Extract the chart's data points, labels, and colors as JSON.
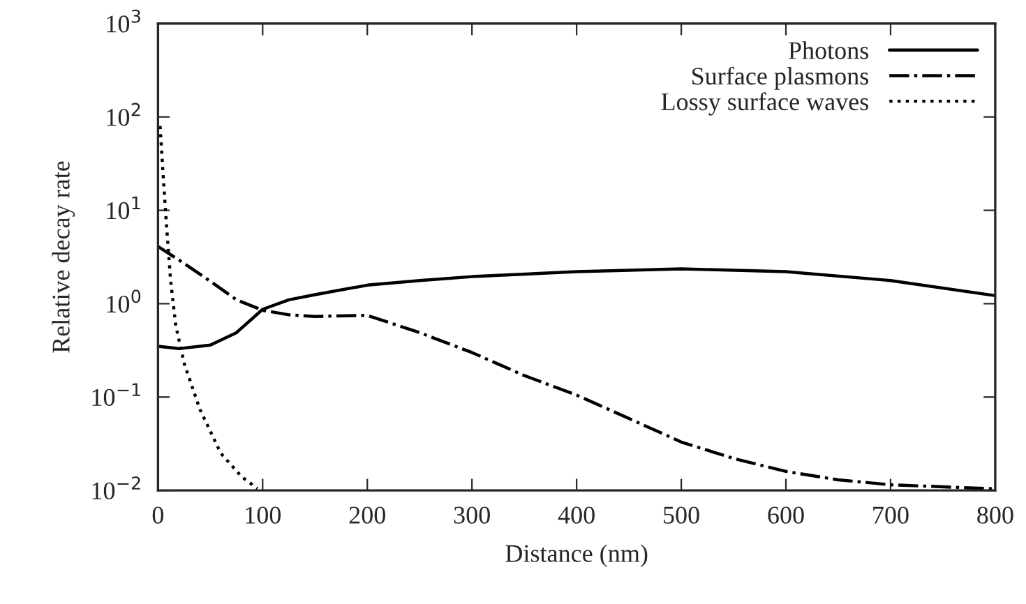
{
  "chart_data": {
    "type": "line",
    "xlabel": "Distance (nm)",
    "ylabel": "Relative decay rate",
    "log": "y",
    "xlim": [
      0,
      800
    ],
    "xticks": [
      0,
      100,
      200,
      300,
      400,
      500,
      600,
      700,
      800
    ],
    "ylim": [
      0.01,
      1000
    ],
    "yticks": [
      {
        "value": 0.01,
        "label": "10$^{−2}$"
      },
      {
        "value": 0.1,
        "label": "10$^{−1}$"
      },
      {
        "value": 1,
        "label": "10$^{0}$"
      },
      {
        "value": 10,
        "label": "10$^{1}$"
      },
      {
        "value": 100,
        "label": "10$^{2}$"
      },
      {
        "value": 1000,
        "label": "10$^{3}$"
      }
    ],
    "grid": false,
    "legend": "top right",
    "marker": "none",
    "series": [
      {
        "name": "Photons",
        "color": "#000000",
        "line_style": "solid",
        "x": [
          0,
          20,
          50,
          75,
          100,
          125,
          150,
          200,
          250,
          300,
          400,
          500,
          600,
          700,
          800
        ],
        "values": [
          0.35,
          0.33,
          0.36,
          0.49,
          0.87,
          1.1,
          1.25,
          1.58,
          1.77,
          1.95,
          2.2,
          2.36,
          2.2,
          1.77,
          1.22
        ]
      },
      {
        "name": "Surface plasmons",
        "color": "#000000",
        "line_style": "dashdot",
        "x": [
          0,
          25,
          50,
          75,
          100,
          125,
          150,
          200,
          250,
          300,
          350,
          400,
          450,
          500,
          550,
          600,
          650,
          700,
          800
        ],
        "values": [
          4.1,
          2.7,
          1.74,
          1.1,
          0.85,
          0.76,
          0.73,
          0.75,
          0.49,
          0.3,
          0.17,
          0.105,
          0.059,
          0.033,
          0.022,
          0.016,
          0.013,
          0.0115,
          0.0104
        ]
      },
      {
        "name": "Lossy surface waves",
        "color": "#000000",
        "line_style": "dotted",
        "x": [
          2,
          5,
          8,
          12,
          17,
          25,
          40,
          60,
          80,
          95
        ],
        "values": [
          80,
          23,
          7.2,
          1.8,
          0.58,
          0.23,
          0.074,
          0.025,
          0.014,
          0.0105
        ]
      }
    ]
  }
}
